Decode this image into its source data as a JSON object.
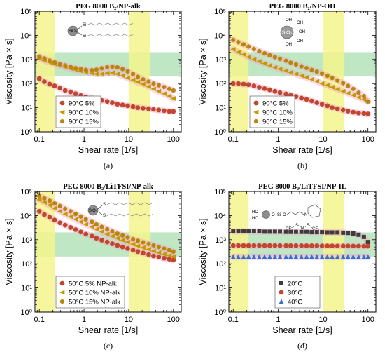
{
  "chart_data": [
    {
      "type": "scatter",
      "title": "PEG 8000 B₂/NP-alk",
      "panel_label": "(a)",
      "xlabel": "Shear rate [1/s]",
      "ylabel": "Viscosity [Pa × s]",
      "x_scale": "log",
      "y_scale": "log",
      "xlim": [
        0.08,
        150
      ],
      "ylim": [
        1,
        100000
      ],
      "xticks": [
        "0.1",
        "1",
        "10",
        "100"
      ],
      "yticks": [
        "10⁰",
        "10¹",
        "10²",
        "10³",
        "10⁴",
        "10⁵"
      ],
      "legend_position": "bottom-left",
      "inset": "structure-np-alk",
      "series": [
        {
          "name": "90°C  5%",
          "marker": "circle",
          "color": "#c0472e",
          "x": [
            0.1,
            0.13,
            0.17,
            0.22,
            0.29,
            0.38,
            0.5,
            0.65,
            0.85,
            1.1,
            1.5,
            1.9,
            2.5,
            3.3,
            4.3,
            5.6,
            7.3,
            9.5,
            12.5,
            16,
            21,
            28,
            36,
            47,
            62,
            81,
            100
          ],
          "y": [
            160,
            120,
            95,
            80,
            65,
            52,
            45,
            38,
            32,
            28,
            25,
            22,
            20,
            18,
            16,
            14,
            13,
            12,
            11,
            10,
            9.5,
            9,
            8.5,
            8,
            7.5,
            7,
            7
          ]
        },
        {
          "name": "90°C  10%",
          "marker": "triangle-left",
          "color": "#c29a00",
          "x": [
            0.1,
            0.13,
            0.17,
            0.22,
            0.29,
            0.38,
            0.5,
            0.65,
            0.85,
            1.1,
            1.5,
            1.9,
            2.5,
            3.3,
            4.3,
            5.6,
            7.3,
            9.5,
            12.5,
            16,
            21,
            28,
            36,
            47,
            62,
            81,
            100
          ],
          "y": [
            1100,
            900,
            760,
            650,
            560,
            480,
            420,
            370,
            330,
            300,
            270,
            250,
            250,
            270,
            280,
            250,
            210,
            170,
            140,
            115,
            95,
            75,
            60,
            48,
            38,
            30,
            24
          ]
        },
        {
          "name": "90°C  15%",
          "marker": "hexagon",
          "color": "#b8860b",
          "x": [
            0.1,
            0.13,
            0.17,
            0.22,
            0.29,
            0.38,
            0.5,
            0.65,
            0.85,
            1.1,
            1.5,
            1.9,
            2.5,
            3.3,
            4.3,
            5.6,
            7.3,
            9.5,
            12.5,
            16,
            21,
            28,
            36,
            47,
            62,
            81,
            100
          ],
          "y": [
            1300,
            1100,
            900,
            760,
            640,
            560,
            490,
            440,
            400,
            370,
            360,
            380,
            430,
            480,
            500,
            470,
            400,
            320,
            250,
            190,
            150,
            120,
            100,
            85,
            72,
            60,
            52
          ]
        }
      ]
    },
    {
      "type": "scatter",
      "title": "PEG 8000 B₂/NP-OH",
      "panel_label": "(b)",
      "xlabel": "Shear rate [1/s]",
      "ylabel": "Viscosity [Pa × s]",
      "x_scale": "log",
      "y_scale": "log",
      "xlim": [
        0.08,
        150
      ],
      "ylim": [
        1,
        100000
      ],
      "xticks": [
        "0.1",
        "1",
        "10",
        "100"
      ],
      "yticks": [
        "10⁰",
        "10¹",
        "10²",
        "10³",
        "10⁴",
        "10⁵"
      ],
      "legend_position": "bottom-left",
      "inset": "structure-np-oh",
      "series": [
        {
          "name": "90°C  5%",
          "marker": "circle",
          "color": "#c0472e",
          "x": [
            0.1,
            0.13,
            0.17,
            0.22,
            0.29,
            0.38,
            0.5,
            0.65,
            0.85,
            1.1,
            1.5,
            1.9,
            2.5,
            3.3,
            4.3,
            5.6,
            7.3,
            9.5,
            12.5,
            16,
            21,
            28,
            36,
            47,
            62,
            81,
            100
          ],
          "y": [
            100,
            100,
            95,
            90,
            80,
            70,
            62,
            55,
            48,
            42,
            37,
            33,
            29,
            25,
            22,
            19,
            16,
            14,
            12,
            10,
            9,
            8,
            7.2,
            6.5,
            6,
            5.8,
            5.5
          ]
        },
        {
          "name": "90°C  10%",
          "marker": "triangle-left",
          "color": "#c29a00",
          "x": [
            0.1,
            0.13,
            0.17,
            0.22,
            0.29,
            0.38,
            0.5,
            0.65,
            0.85,
            1.1,
            1.5,
            1.9,
            2.5,
            3.3,
            4.3,
            5.6,
            7.3,
            9.5,
            12.5,
            16,
            21,
            28,
            36,
            47,
            62,
            81,
            100
          ],
          "y": [
            2600,
            2000,
            1600,
            1250,
            1000,
            820,
            680,
            560,
            470,
            400,
            340,
            290,
            250,
            210,
            180,
            150,
            125,
            100,
            85,
            70,
            58,
            48,
            40,
            33,
            27,
            22,
            18
          ]
        },
        {
          "name": "90°C  15%",
          "marker": "hexagon",
          "color": "#b8860b",
          "x": [
            0.1,
            0.13,
            0.17,
            0.22,
            0.29,
            0.38,
            0.5,
            0.65,
            0.85,
            1.1,
            1.5,
            1.9,
            2.5,
            3.3,
            4.3,
            5.6,
            7.3,
            9.5,
            12.5,
            16,
            21,
            28,
            36,
            47,
            62,
            81,
            100
          ],
          "y": [
            6500,
            5200,
            4200,
            3400,
            2700,
            2200,
            1800,
            1500,
            1250,
            1050,
            880,
            740,
            620,
            520,
            440,
            370,
            310,
            260,
            210,
            170,
            135,
            105,
            80,
            60,
            42,
            30,
            18
          ]
        }
      ]
    },
    {
      "type": "scatter",
      "title": "PEG 8000 B₂/LiTFSI/NP-alk",
      "panel_label": "(c)",
      "xlabel": "Shear rate [1/s]",
      "ylabel": "Viscosity [Pa × s]",
      "x_scale": "log",
      "y_scale": "log",
      "xlim": [
        0.08,
        150
      ],
      "ylim": [
        1,
        100000
      ],
      "xticks": [
        "0.1",
        "1",
        "10",
        "100"
      ],
      "yticks": [
        "10⁰",
        "10¹",
        "10²",
        "10³",
        "10⁴",
        "10⁵"
      ],
      "legend_position": "bottom-left",
      "inset": "structure-np-alk",
      "series": [
        {
          "name": "50°C 5%  NP-alk",
          "marker": "circle",
          "color": "#c0472e",
          "x": [
            0.1,
            0.13,
            0.17,
            0.22,
            0.29,
            0.38,
            0.5,
            0.65,
            0.85,
            1.1,
            1.5,
            1.9,
            2.5,
            3.3,
            4.3,
            5.6,
            7.3,
            9.5,
            12.5,
            16,
            21,
            28,
            36,
            47,
            62,
            81,
            100
          ],
          "y": [
            15000,
            11000,
            8500,
            6500,
            5000,
            4000,
            3200,
            2600,
            2100,
            1700,
            1400,
            1150,
            950,
            800,
            680,
            580,
            500,
            430,
            370,
            320,
            280,
            240,
            210,
            190,
            170,
            155,
            145
          ]
        },
        {
          "name": "50°C 10%  NP-alk",
          "marker": "triangle-left",
          "color": "#c29a00",
          "x": [
            0.1,
            0.13,
            0.17,
            0.22,
            0.29,
            0.38,
            0.5,
            0.65,
            0.85,
            1.1,
            1.5,
            1.9,
            2.5,
            3.3,
            4.3,
            5.6,
            7.3,
            9.5,
            12.5,
            16,
            21,
            28,
            36,
            47,
            62,
            81,
            100
          ],
          "y": [
            45000,
            35000,
            27000,
            20000,
            15000,
            11500,
            9000,
            7000,
            5500,
            4300,
            3400,
            2700,
            2150,
            1700,
            1400,
            1150,
            950,
            800,
            650,
            550,
            470,
            400,
            340,
            290,
            250,
            220,
            200
          ]
        },
        {
          "name": "50°C 15%  NP-alk",
          "marker": "hexagon",
          "color": "#b8860b",
          "x": [
            0.1,
            0.13,
            0.17,
            0.22,
            0.29,
            0.38,
            0.5,
            0.65,
            0.85,
            1.1,
            1.5,
            1.9,
            2.5,
            3.3,
            4.3,
            5.6,
            7.3,
            9.5,
            12.5,
            16,
            21,
            28,
            36,
            47,
            62,
            81,
            100
          ],
          "y": [
            65000,
            52000,
            41000,
            32000,
            25000,
            19000,
            15000,
            11500,
            9000,
            7000,
            5500,
            4300,
            3400,
            2700,
            2200,
            1800,
            1500,
            1250,
            1050,
            900,
            780,
            670,
            580,
            500,
            430,
            370,
            320
          ]
        }
      ]
    },
    {
      "type": "scatter",
      "title": "PEG 8000 B₂/LiTFSI/NP-IL",
      "panel_label": "(d)",
      "xlabel": "Shear rate [1/s]",
      "ylabel": "Viscosity [Pa × s]",
      "x_scale": "log",
      "y_scale": "log",
      "xlim": [
        0.08,
        150
      ],
      "ylim": [
        1,
        100000
      ],
      "xticks": [
        "0.1",
        "1",
        "10",
        "100"
      ],
      "yticks": [
        "10⁰",
        "10¹",
        "10²",
        "10³",
        "10⁴",
        "10⁵"
      ],
      "legend_position": "bottom-left",
      "inset": "structure-np-il",
      "series": [
        {
          "name": "20°C",
          "marker": "square",
          "color": "#3c3c3c",
          "x": [
            0.1,
            0.13,
            0.17,
            0.22,
            0.29,
            0.38,
            0.5,
            0.65,
            0.85,
            1.1,
            1.5,
            1.9,
            2.5,
            3.3,
            4.3,
            5.6,
            7.3,
            9.5,
            12.5,
            16,
            21,
            28,
            36,
            47,
            62,
            81,
            100
          ],
          "y": [
            2200,
            2200,
            2200,
            2200,
            2200,
            2200,
            2150,
            2150,
            2150,
            2150,
            2100,
            2100,
            2100,
            2100,
            2100,
            2050,
            2050,
            2050,
            2000,
            2000,
            2000,
            1950,
            1900,
            1800,
            1600,
            1300,
            800
          ]
        },
        {
          "name": "30°C",
          "marker": "circle",
          "color": "#c0472e",
          "x": [
            0.1,
            0.13,
            0.17,
            0.22,
            0.29,
            0.38,
            0.5,
            0.65,
            0.85,
            1.1,
            1.5,
            1.9,
            2.5,
            3.3,
            4.3,
            5.6,
            7.3,
            9.5,
            12.5,
            16,
            21,
            28,
            36,
            47,
            62,
            81,
            100
          ],
          "y": [
            570,
            570,
            570,
            570,
            570,
            570,
            570,
            570,
            570,
            565,
            565,
            565,
            560,
            560,
            560,
            560,
            560,
            555,
            555,
            555,
            550,
            550,
            550,
            545,
            545,
            540,
            540
          ]
        },
        {
          "name": "40°C",
          "marker": "triangle-up",
          "color": "#2f6fd6",
          "x": [
            0.1,
            0.13,
            0.17,
            0.22,
            0.29,
            0.38,
            0.5,
            0.65,
            0.85,
            1.1,
            1.5,
            1.9,
            2.5,
            3.3,
            4.3,
            5.6,
            7.3,
            9.5,
            12.5,
            16,
            21,
            28,
            36,
            47,
            62,
            81,
            100
          ],
          "y": [
            195,
            195,
            195,
            195,
            195,
            195,
            195,
            195,
            195,
            195,
            195,
            195,
            195,
            195,
            195,
            195,
            195,
            195,
            195,
            195,
            195,
            195,
            195,
            195,
            195,
            195,
            195
          ]
        }
      ]
    }
  ],
  "highlights": {
    "low_shear_band_x": [
      0.1,
      0.22
    ],
    "high_shear_band_x": [
      10,
      30
    ],
    "target_viscosity_band_y": [
      200,
      2000
    ]
  },
  "inset_labels": {
    "sio2": "SiO₂",
    "oh": "OH",
    "ho": "HO",
    "si": "Si",
    "o": "O",
    "cf3": "CF₃",
    "n": "N",
    "s": "S"
  },
  "colors": {
    "yellow_band": "#f3f58c",
    "green_band": "#b5e3b8",
    "glow": "#f6a3c9"
  }
}
